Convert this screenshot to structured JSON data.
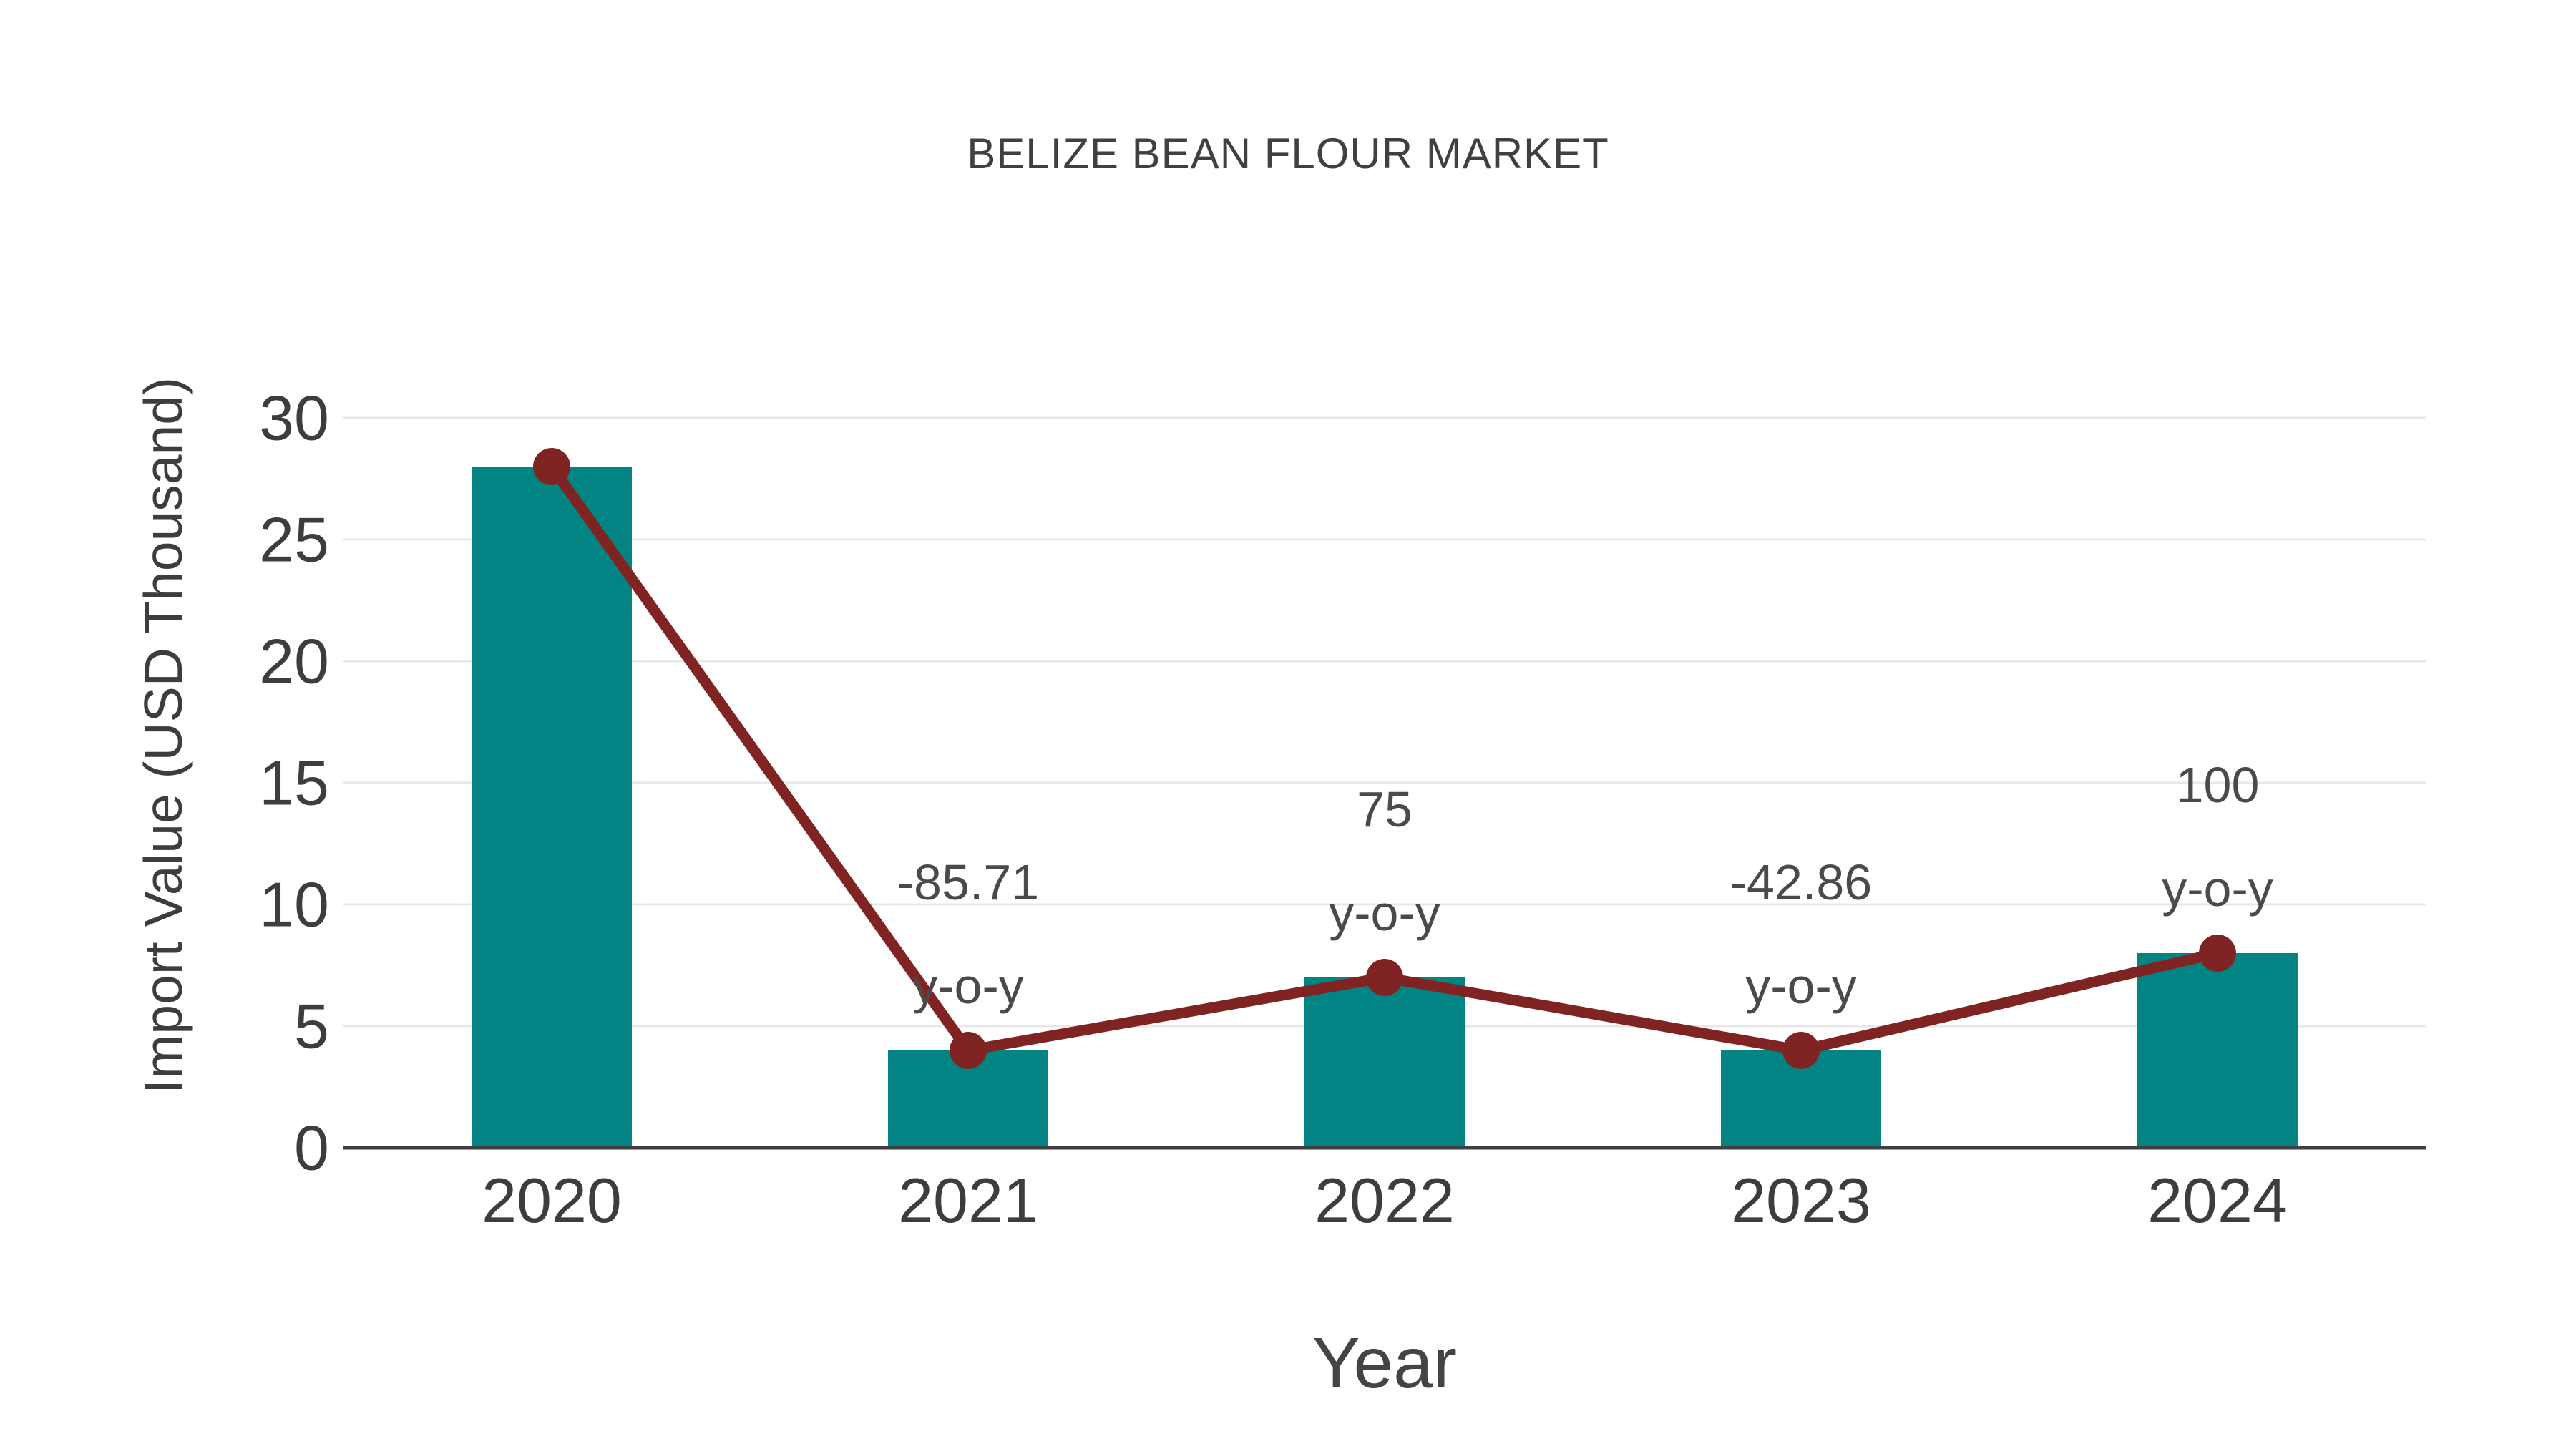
{
  "chart_data": {
    "type": "bar",
    "title": "BELIZE BEAN FLOUR MARKET",
    "xlabel": "Year",
    "ylabel": "Import Value (USD Thousand)",
    "categories": [
      "2020",
      "2021",
      "2022",
      "2023",
      "2024"
    ],
    "series": [
      {
        "name": "Import Value bars",
        "type": "bar",
        "values": [
          28,
          4,
          7,
          4,
          8
        ]
      },
      {
        "name": "Import Value trend line",
        "type": "line",
        "values": [
          28,
          4,
          7,
          4,
          8
        ]
      }
    ],
    "yticks": [
      0,
      5,
      10,
      15,
      20,
      25,
      30
    ],
    "ylim": [
      0,
      30
    ],
    "grid": true,
    "legend_position": "none",
    "annotations": [
      {
        "category": "2021",
        "lines": [
          "-85.71",
          "y-o-y"
        ]
      },
      {
        "category": "2022",
        "lines": [
          "75",
          "y-o-y"
        ]
      },
      {
        "category": "2023",
        "lines": [
          "-42.86",
          "y-o-y"
        ]
      },
      {
        "category": "2024",
        "lines": [
          "100",
          "y-o-y"
        ]
      }
    ],
    "colors": {
      "bar": "#028484",
      "line": "#7f2423",
      "marker": "#7f2423",
      "grid": "#e8e8e8",
      "axis": "#404040",
      "tick_text": "#3d3d3d",
      "annotation_text": "#4a4a4a",
      "title_text": "#404040",
      "background": "#ffffff"
    }
  }
}
